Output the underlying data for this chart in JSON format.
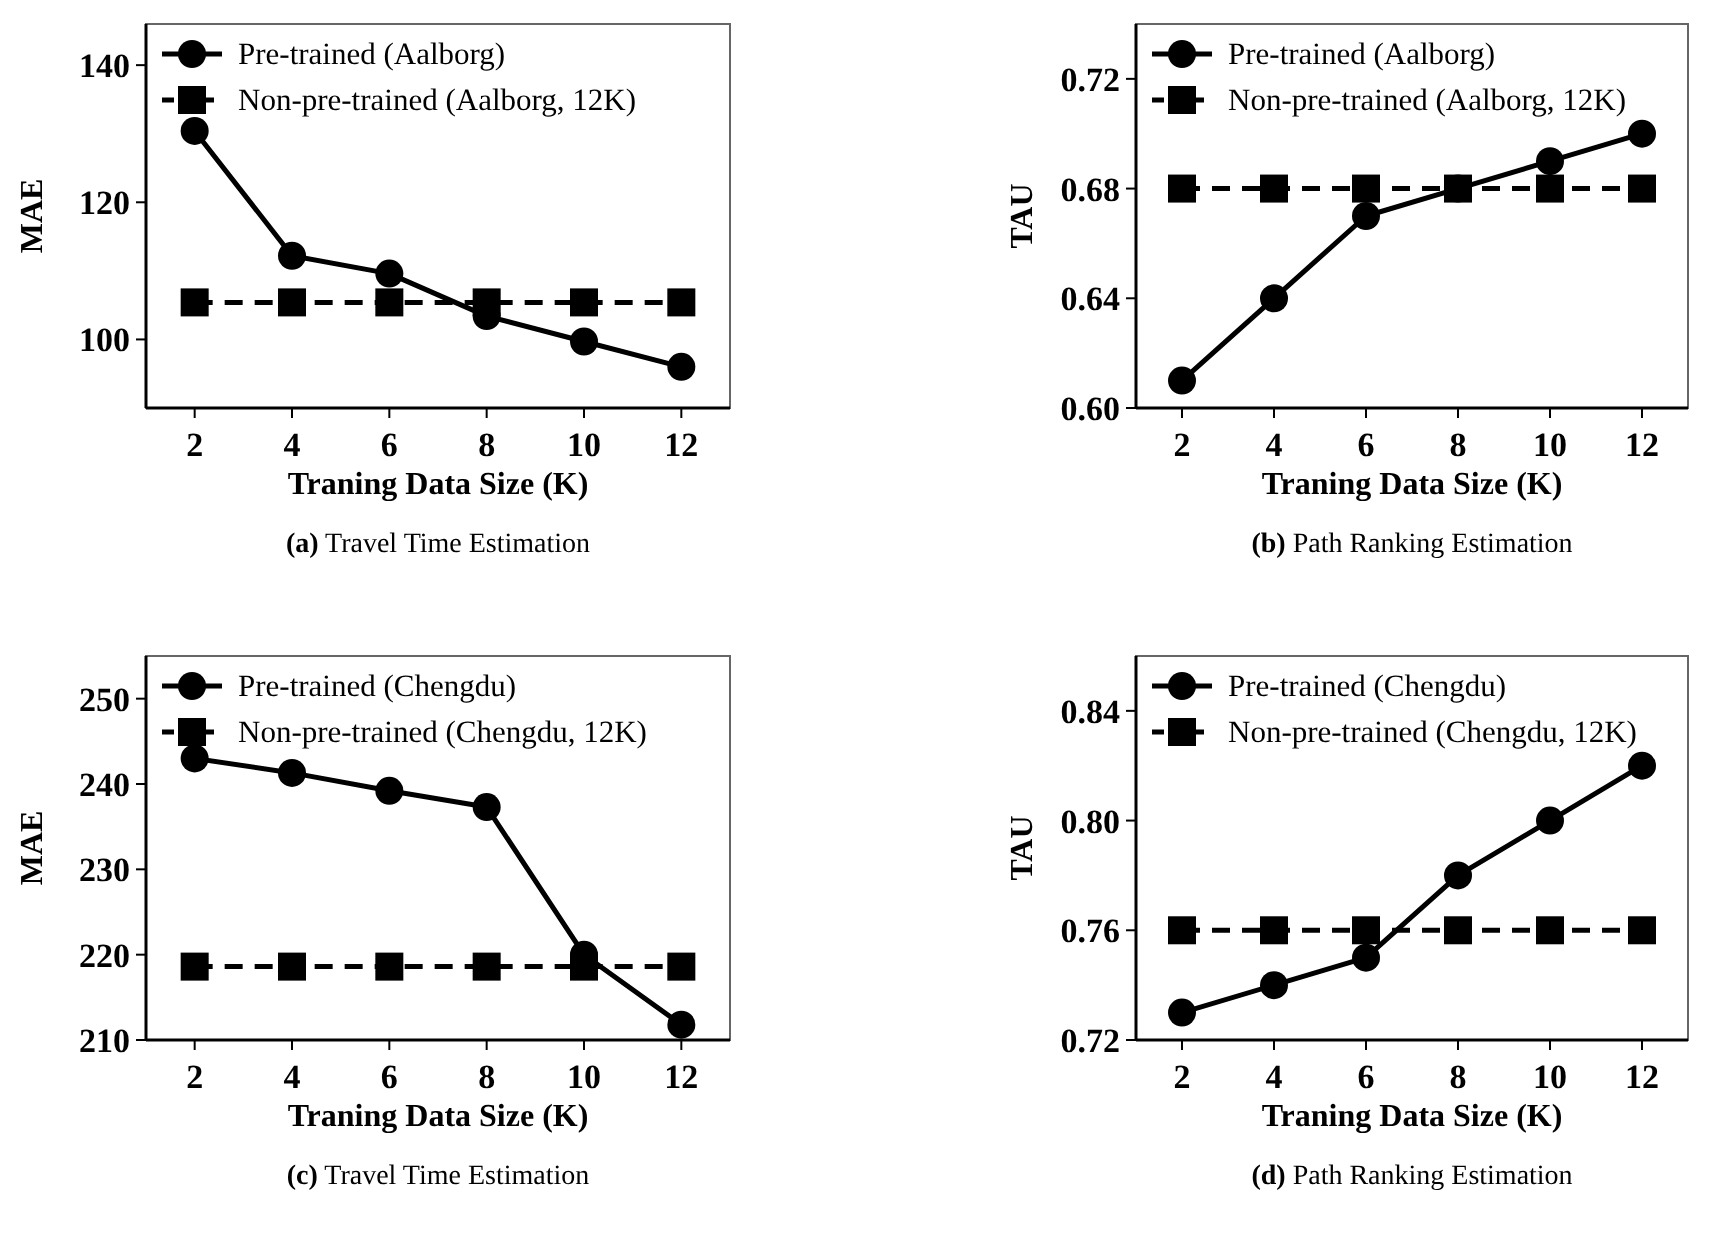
{
  "chart_data": [
    {
      "type": "line",
      "title": "(a) Travel Time Estimation",
      "xlabel": "Traning Data Size (K)",
      "ylabel": "MAE",
      "x": [
        2,
        4,
        6,
        8,
        10,
        12
      ],
      "xlim": [
        1,
        13
      ],
      "xticks": [
        2,
        4,
        6,
        8,
        10,
        12
      ],
      "ylim": [
        90,
        146
      ],
      "yticks": [
        100,
        120,
        140
      ],
      "legend": "top left",
      "grid": false,
      "series": [
        {
          "name": "Pre-trained (Aalborg)",
          "color": "#000000",
          "marker": "circle",
          "line_style": "solid",
          "values": [
            130.4,
            112.2,
            109.6,
            103.4,
            99.7,
            96.0
          ]
        },
        {
          "name": "Non-pre-trained (Aalborg, 12K)",
          "color": "#000000",
          "marker": "square",
          "line_style": "dashed",
          "values": [
            105.4,
            105.4,
            105.4,
            105.4,
            105.4,
            105.4
          ]
        }
      ]
    },
    {
      "type": "line",
      "title": "(b) Path Ranking Estimation",
      "xlabel": "Traning Data Size (K)",
      "ylabel": "TAU",
      "x": [
        2,
        4,
        6,
        8,
        10,
        12
      ],
      "xlim": [
        1,
        13
      ],
      "xticks": [
        2,
        4,
        6,
        8,
        10,
        12
      ],
      "ylim": [
        0.6,
        0.74
      ],
      "yticks": [
        {
          "value": 0.6,
          "label": "0.60"
        },
        0.64,
        0.68,
        0.72
      ],
      "legend": "top left",
      "grid": false,
      "series": [
        {
          "name": "Pre-trained (Aalborg)",
          "color": "#000000",
          "marker": "circle",
          "line_style": "solid",
          "values": [
            0.61,
            0.64,
            0.67,
            0.68,
            0.69,
            0.7
          ]
        },
        {
          "name": "Non-pre-trained (Aalborg, 12K)",
          "color": "#000000",
          "marker": "square",
          "line_style": "dashed",
          "values": [
            0.68,
            0.68,
            0.68,
            0.68,
            0.68,
            0.68
          ]
        }
      ]
    },
    {
      "type": "line",
      "title": "(c) Travel Time Estimation",
      "xlabel": "Traning Data Size (K)",
      "ylabel": "MAE",
      "x": [
        2,
        4,
        6,
        8,
        10,
        12
      ],
      "xlim": [
        1,
        13
      ],
      "xticks": [
        2,
        4,
        6,
        8,
        10,
        12
      ],
      "ylim": [
        210,
        255
      ],
      "yticks": [
        210,
        220,
        230,
        240,
        250
      ],
      "legend": "top left",
      "grid": false,
      "series": [
        {
          "name": "Pre-trained (Chengdu)",
          "color": "#000000",
          "marker": "circle",
          "line_style": "solid",
          "values": [
            243.0,
            241.3,
            239.2,
            237.3,
            220.0,
            211.8
          ]
        },
        {
          "name": "Non-pre-trained (Chengdu, 12K)",
          "color": "#000000",
          "marker": "square",
          "line_style": "dashed",
          "values": [
            218.6,
            218.6,
            218.6,
            218.6,
            218.6,
            218.6
          ]
        }
      ]
    },
    {
      "type": "line",
      "title": "(d) Path Ranking Estimation",
      "xlabel": "Traning Data Size (K)",
      "ylabel": "TAU",
      "x": [
        2,
        4,
        6,
        8,
        10,
        12
      ],
      "xlim": [
        1,
        13
      ],
      "xticks": [
        2,
        4,
        6,
        8,
        10,
        12
      ],
      "ylim": [
        0.72,
        0.86
      ],
      "yticks": [
        0.72,
        0.76,
        {
          "value": 0.8,
          "label": "0.80"
        },
        0.84
      ],
      "legend": "top left",
      "grid": false,
      "series": [
        {
          "name": "Pre-trained (Chengdu)",
          "color": "#000000",
          "marker": "circle",
          "line_style": "solid",
          "values": [
            0.73,
            0.74,
            0.75,
            0.78,
            0.8,
            0.82
          ]
        },
        {
          "name": "Non-pre-trained (Chengdu, 12K)",
          "color": "#000000",
          "marker": "square",
          "line_style": "dashed",
          "values": [
            0.76,
            0.76,
            0.76,
            0.76,
            0.76,
            0.76
          ]
        }
      ]
    }
  ]
}
